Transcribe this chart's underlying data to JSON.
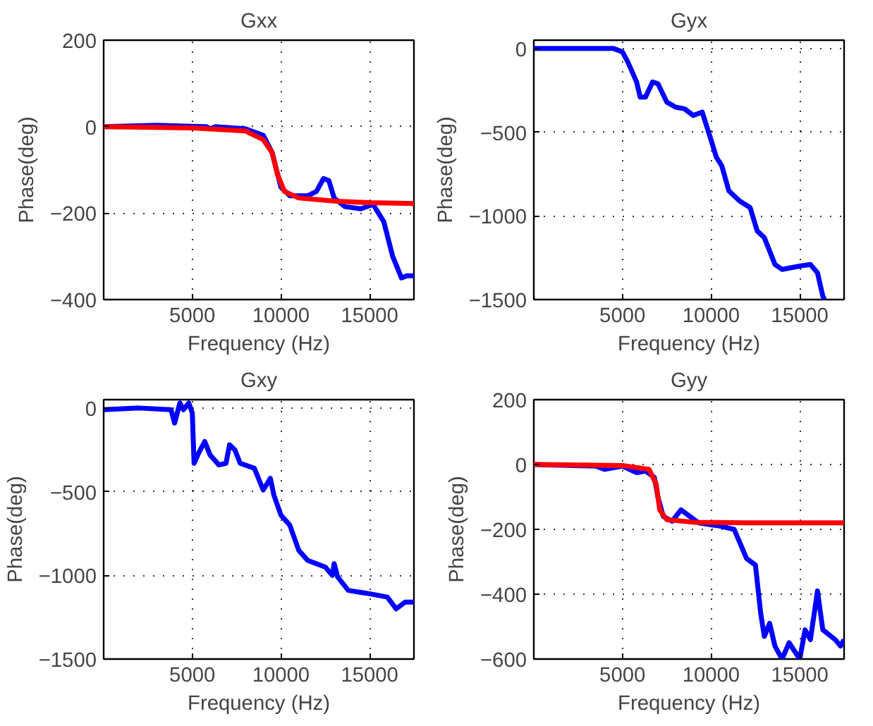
{
  "chart_data": [
    {
      "type": "line",
      "title": "Gxx",
      "xlabel": "Frequency (Hz)",
      "ylabel": "Phase(deg)",
      "xlim": [
        0,
        17500
      ],
      "xticks": [
        5000,
        10000,
        15000
      ],
      "ylim": [
        -400,
        200
      ],
      "yticks": [
        -400,
        -200,
        0,
        200
      ],
      "grid": true,
      "line_style": "solid",
      "marker": "none",
      "series": [
        {
          "color": "#0000ff",
          "x": [
            0,
            3000,
            5800,
            6000,
            6300,
            8000,
            9000,
            9500,
            10000,
            10500,
            11500,
            12000,
            12400,
            12700,
            13000,
            13600,
            14500,
            15200,
            15800,
            16300,
            16800,
            17100,
            17500
          ],
          "values": [
            0,
            3,
            0,
            -5,
            0,
            -5,
            -20,
            -60,
            -140,
            -160,
            -160,
            -150,
            -120,
            -125,
            -165,
            -185,
            -190,
            -180,
            -220,
            -300,
            -350,
            -345,
            -345
          ]
        },
        {
          "color": "#ff0000",
          "x": [
            0,
            5000,
            8000,
            9000,
            9500,
            9800,
            10200,
            11000,
            13000,
            15000,
            17500
          ],
          "values": [
            0,
            -3,
            -10,
            -30,
            -60,
            -110,
            -150,
            -165,
            -172,
            -176,
            -178
          ]
        }
      ]
    },
    {
      "type": "line",
      "title": "Gyx",
      "xlabel": "Frequency (Hz)",
      "ylabel": "Phase(deg)",
      "xlim": [
        0,
        17500
      ],
      "xticks": [
        5000,
        10000,
        15000
      ],
      "ylim": [
        -1500,
        50
      ],
      "yticks": [
        -1500,
        -1000,
        -500,
        0
      ],
      "grid": true,
      "line_style": "solid",
      "marker": "none",
      "series": [
        {
          "color": "#0000ff",
          "x": [
            0,
            4000,
            4500,
            5000,
            5300,
            5800,
            6000,
            6300,
            6700,
            7000,
            7500,
            8000,
            8500,
            9000,
            9500,
            9800,
            10300,
            10600,
            11000,
            11600,
            12200,
            12600,
            13000,
            13600,
            14000,
            15000,
            15600,
            16000,
            16300,
            16400
          ],
          "values": [
            0,
            0,
            0,
            -20,
            -80,
            -200,
            -290,
            -290,
            -200,
            -210,
            -320,
            -350,
            -360,
            -400,
            -380,
            -480,
            -650,
            -700,
            -850,
            -910,
            -950,
            -1090,
            -1130,
            -1290,
            -1320,
            -1300,
            -1290,
            -1340,
            -1480,
            -1500
          ]
        }
      ]
    },
    {
      "type": "line",
      "title": "Gxy",
      "xlabel": "Frequency (Hz)",
      "ylabel": "Phase(deg)",
      "xlim": [
        0,
        17500
      ],
      "xticks": [
        5000,
        10000,
        15000
      ],
      "ylim": [
        -1500,
        50
      ],
      "yticks": [
        -1500,
        -1000,
        -500,
        0
      ],
      "grid": true,
      "line_style": "solid",
      "marker": "none",
      "series": [
        {
          "color": "#0000ff",
          "x": [
            0,
            2000,
            3800,
            4000,
            4200,
            4300,
            4500,
            4800,
            5000,
            5100,
            5400,
            5700,
            6000,
            6500,
            6900,
            7100,
            7400,
            7700,
            8500,
            9000,
            9400,
            9600,
            10000,
            10500,
            11000,
            11500,
            12500,
            12900,
            13000,
            13200,
            13800,
            15000,
            16000,
            16500,
            17000,
            17500
          ],
          "values": [
            -10,
            0,
            -10,
            -90,
            -10,
            30,
            -10,
            30,
            -30,
            -330,
            -260,
            -200,
            -280,
            -340,
            -330,
            -220,
            -250,
            -330,
            -360,
            -490,
            -420,
            -520,
            -640,
            -700,
            -850,
            -910,
            -950,
            -1000,
            -930,
            -1010,
            -1090,
            -1110,
            -1130,
            -1200,
            -1160,
            -1160
          ]
        }
      ]
    },
    {
      "type": "line",
      "title": "Gyy",
      "xlabel": "Frequency (Hz)",
      "ylabel": "Phase(deg)",
      "xlim": [
        0,
        17500
      ],
      "xticks": [
        5000,
        10000,
        15000
      ],
      "ylim": [
        -600,
        200
      ],
      "yticks": [
        -600,
        -400,
        -200,
        0,
        200
      ],
      "grid": true,
      "line_style": "solid",
      "marker": "none",
      "series": [
        {
          "color": "#0000ff",
          "x": [
            0,
            3500,
            4000,
            5000,
            5800,
            6300,
            6800,
            7000,
            7300,
            7800,
            8300,
            8800,
            9300,
            10500,
            11300,
            12000,
            12500,
            12800,
            13000,
            13300,
            13600,
            14000,
            14400,
            15000,
            15300,
            15600,
            16000,
            16300,
            17000,
            17300,
            17500
          ],
          "values": [
            0,
            -5,
            -15,
            -5,
            -25,
            -20,
            -40,
            -100,
            -160,
            -175,
            -140,
            -160,
            -180,
            -190,
            -200,
            -290,
            -310,
            -460,
            -530,
            -490,
            -560,
            -600,
            -550,
            -600,
            -510,
            -540,
            -390,
            -510,
            -540,
            -560,
            -540
          ]
        },
        {
          "color": "#ff0000",
          "x": [
            0,
            5000,
            6500,
            6900,
            7100,
            7500,
            9000,
            12000,
            17500
          ],
          "values": [
            0,
            -3,
            -15,
            -60,
            -140,
            -170,
            -178,
            -180,
            -180
          ]
        }
      ]
    }
  ]
}
